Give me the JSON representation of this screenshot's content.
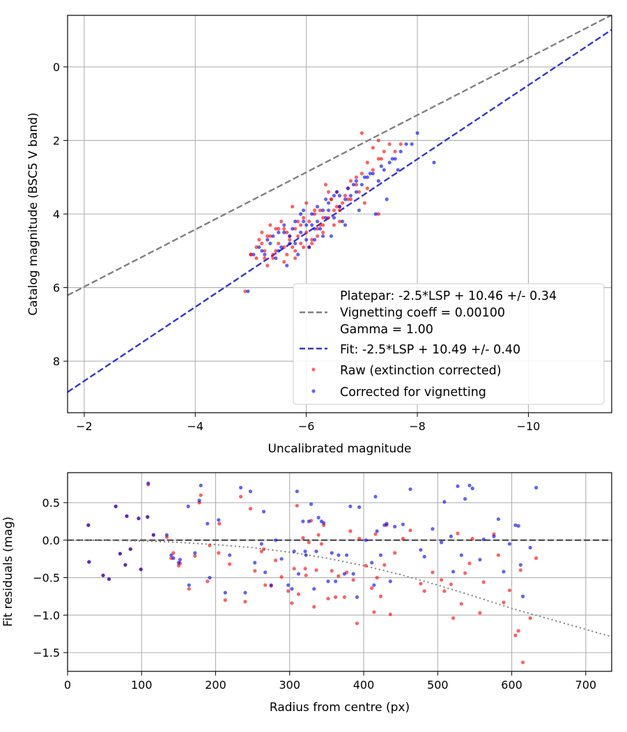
{
  "chart_data": [
    {
      "type": "scatter",
      "xlabel": "Uncalibrated magnitude",
      "ylabel": "Catalog magnitude (BSC5 V band)",
      "xlim": [
        -1.7,
        -11.5
      ],
      "ylim": [
        9.4,
        -1.4
      ],
      "x_inverted": true,
      "y_inverted": true,
      "xticks": [
        -2,
        -4,
        -6,
        -8,
        -10
      ],
      "xtick_labels": [
        "−2",
        "−4",
        "−6",
        "−8",
        "−10"
      ],
      "yticks": [
        0,
        2,
        4,
        6,
        8
      ],
      "ytick_labels": [
        "0",
        "2",
        "4",
        "6",
        "8"
      ],
      "grid": true,
      "legend_position": "lower-right",
      "legend": [
        {
          "label": "Platepar: -2.5*LSP + 10.46 +/- 0.34",
          "style": "none"
        },
        {
          "label": "Vignetting coeff = 0.00100",
          "style": "dashed",
          "color": "#808080"
        },
        {
          "label": "Gamma = 1.00",
          "style": "none"
        },
        {
          "label": "Fit: -2.5*LSP + 10.49 +/- 0.40",
          "style": "dashed",
          "color": "#3333dd"
        },
        {
          "label": "Raw (extinction corrected)",
          "style": "marker",
          "color": "#ff0000"
        },
        {
          "label": "Corrected for vignetting",
          "style": "marker",
          "color": "#0000ff"
        }
      ],
      "lines": [
        {
          "name": "Platepar",
          "x": [
            -1.7,
            -11.5
          ],
          "y": [
            6.21,
            -1.41
          ],
          "style": "dashed",
          "color": "#808080"
        },
        {
          "name": "Fit",
          "x": [
            -1.7,
            -11.5
          ],
          "y": [
            8.84,
            -1.01
          ],
          "style": "dashed",
          "color": "#3333dd"
        }
      ],
      "series": [
        {
          "name": "Raw (extinction corrected)",
          "color": "#ff0000",
          "x": [
            -4.9,
            -5.0,
            -5.1,
            -5.15,
            -5.2,
            -5.25,
            -5.3,
            -5.35,
            -5.4,
            -5.45,
            -5.5,
            -5.55,
            -5.6,
            -5.65,
            -5.7,
            -5.75,
            -5.8,
            -5.85,
            -5.9,
            -5.95,
            -6.0,
            -6.05,
            -6.1,
            -6.15,
            -6.2,
            -6.25,
            -6.3,
            -6.35,
            -6.4,
            -6.45,
            -6.5,
            -6.55,
            -6.6,
            -6.65,
            -6.7,
            -6.75,
            -6.8,
            -6.9,
            -7.0,
            -7.1,
            -7.2,
            -7.3,
            -7.4,
            -7.5,
            -7.6,
            -7.7,
            -7.0,
            -7.2,
            -7.3,
            -6.9,
            -6.6,
            -6.3,
            -6.1,
            -5.8,
            -5.6,
            -5.4,
            -5.2,
            -5.0,
            -5.3,
            -5.7,
            -6.0,
            -6.4,
            -6.8,
            -7.1,
            -7.3,
            -5.5,
            -5.9,
            -6.2,
            -6.5,
            -5.1,
            -5.35,
            -5.6,
            -5.8,
            -6.05,
            -6.3,
            -6.55,
            -6.75,
            -6.95,
            -5.45,
            -5.65,
            -5.85,
            -6.15,
            -6.45,
            -5.25,
            -5.75,
            -6.25,
            -6.6,
            -7.05,
            -7.35,
            -5.95
          ],
          "y": [
            6.1,
            5.1,
            5.2,
            4.7,
            4.5,
            5.0,
            4.6,
            4.3,
            5.1,
            4.4,
            4.8,
            4.2,
            4.9,
            4.5,
            4.7,
            3.8,
            4.4,
            4.6,
            4.3,
            4.9,
            4.5,
            4.2,
            4.7,
            4.0,
            4.4,
            3.9,
            4.3,
            3.2,
            4.1,
            3.6,
            3.9,
            3.4,
            4.2,
            3.7,
            3.5,
            3.3,
            3.1,
            3.2,
            2.9,
            2.6,
            2.8,
            2.5,
            2.3,
            2.1,
            2.3,
            2.1,
            1.8,
            2.2,
            2.0,
            3.0,
            3.8,
            4.5,
            4.8,
            5.0,
            5.3,
            5.2,
            4.8,
            5.1,
            5.4,
            4.6,
            3.7,
            3.4,
            3.6,
            3.3,
            4.0,
            4.4,
            4.8,
            4.6,
            4.3,
            4.9,
            4.6,
            4.4,
            5.2,
            4.9,
            4.1,
            3.8,
            3.6,
            3.4,
            5.0,
            5.1,
            4.2,
            3.9,
            3.6,
            5.2,
            4.9,
            4.3,
            3.9,
            3.7,
            2.5,
            4.1
          ]
        },
        {
          "name": "Corrected for vignetting",
          "color": "#0000ff",
          "x": [
            -4.95,
            -5.05,
            -5.2,
            -5.3,
            -5.4,
            -5.5,
            -5.55,
            -5.6,
            -5.7,
            -5.75,
            -5.8,
            -5.9,
            -5.95,
            -6.0,
            -6.1,
            -6.15,
            -6.2,
            -6.3,
            -6.35,
            -6.4,
            -6.5,
            -6.55,
            -6.6,
            -6.7,
            -6.75,
            -6.8,
            -6.9,
            -7.0,
            -7.1,
            -7.2,
            -7.3,
            -7.4,
            -7.5,
            -7.6,
            -7.7,
            -7.8,
            -7.9,
            -8.0,
            -8.3,
            -7.25,
            -6.95,
            -6.65,
            -6.45,
            -6.25,
            -6.05,
            -5.85,
            -5.65,
            -5.45,
            -5.25,
            -5.35,
            -5.6,
            -5.8,
            -6.0,
            -6.2,
            -6.4,
            -6.6,
            -6.85,
            -7.05,
            -7.15,
            -6.3,
            -6.1,
            -5.9,
            -5.7,
            -5.5,
            -6.5,
            -6.7,
            -7.45,
            -7.65,
            -5.15,
            -5.95,
            -6.35,
            -6.9,
            -7.35,
            -7.55,
            -6.15
          ],
          "y": [
            6.1,
            5.1,
            5.0,
            4.7,
            4.6,
            4.5,
            4.9,
            4.3,
            4.6,
            4.4,
            4.8,
            4.5,
            4.2,
            4.3,
            4.0,
            4.4,
            3.8,
            3.9,
            4.1,
            3.7,
            3.5,
            3.4,
            3.8,
            3.6,
            3.3,
            3.5,
            3.4,
            3.2,
            3.0,
            2.9,
            3.1,
            2.8,
            2.6,
            2.5,
            2.3,
            2.1,
            2.1,
            1.8,
            2.6,
            4.0,
            3.9,
            4.2,
            4.6,
            4.4,
            4.9,
            5.1,
            5.4,
            5.2,
            5.1,
            4.8,
            4.5,
            4.2,
            4.7,
            4.2,
            3.9,
            3.5,
            3.2,
            3.0,
            2.9,
            4.6,
            4.3,
            4.0,
            4.8,
            5.0,
            4.1,
            4.3,
            3.6,
            2.8,
            4.9,
            3.9,
            3.6,
            3.1,
            2.7,
            2.5,
            4.7
          ]
        }
      ]
    },
    {
      "type": "scatter",
      "xlabel": "Radius from centre (px)",
      "ylabel": "Fit residuals (mag)",
      "xlim": [
        0,
        735
      ],
      "ylim": [
        -1.75,
        0.9
      ],
      "xticks": [
        0,
        100,
        200,
        300,
        400,
        500,
        600,
        700
      ],
      "xtick_labels": [
        "0",
        "100",
        "200",
        "300",
        "400",
        "500",
        "600",
        "700"
      ],
      "yticks": [
        0.5,
        0.0,
        -0.5,
        -1.0,
        -1.5
      ],
      "ytick_labels": [
        "0.5",
        "0.0",
        "−0.5",
        "−1.0",
        "−1.5"
      ],
      "grid": true,
      "lines": [
        {
          "name": "zero",
          "x": [
            0,
            735
          ],
          "y": [
            0,
            0
          ],
          "style": "dashed",
          "color": "#555555"
        },
        {
          "name": "vignetting model",
          "x": [
            0,
            50,
            100,
            150,
            200,
            250,
            300,
            350,
            400,
            450,
            500,
            550,
            600,
            650,
            700,
            735
          ],
          "y": [
            0.0,
            -0.002,
            -0.01,
            -0.03,
            -0.06,
            -0.1,
            -0.16,
            -0.24,
            -0.34,
            -0.46,
            -0.6,
            -0.75,
            -0.91,
            -1.05,
            -1.19,
            -1.29
          ],
          "style": "dotted",
          "color": "#808080"
        }
      ],
      "series": [
        {
          "name": "Raw (extinction corrected)",
          "color": "#ff0000",
          "x": [
            28,
            29,
            48,
            56,
            65,
            71,
            78,
            80,
            85,
            96,
            99,
            108,
            109,
            116,
            134,
            140,
            143,
            150,
            152,
            164,
            172,
            178,
            180,
            189,
            192,
            204,
            205,
            213,
            219,
            234,
            240,
            247,
            253,
            262,
            265,
            267,
            275,
            281,
            289,
            298,
            303,
            306,
            310,
            312,
            318,
            321,
            322,
            326,
            329,
            333,
            336,
            339,
            343,
            346,
            352,
            357,
            362,
            366,
            374,
            377,
            382,
            386,
            391,
            394,
            403,
            411,
            414,
            416,
            418,
            423,
            428,
            431,
            436,
            442,
            453,
            463,
            477,
            482,
            493,
            505,
            509,
            518,
            521,
            527,
            532,
            537,
            543,
            547,
            557,
            562,
            576,
            582,
            589,
            597,
            605,
            609,
            612,
            615,
            625,
            633
          ],
          "y": [
            0.2,
            -0.29,
            -0.47,
            -0.52,
            0.45,
            -0.18,
            -0.33,
            0.32,
            -0.12,
            0.29,
            -0.39,
            0.31,
            0.74,
            0.07,
            0.04,
            -0.24,
            -0.17,
            -0.34,
            -0.31,
            -0.65,
            -0.21,
            0.5,
            0.6,
            -0.55,
            -0.07,
            -0.17,
            0.22,
            -0.8,
            -0.32,
            0.58,
            -0.82,
            0.42,
            -0.41,
            -0.15,
            -0.12,
            -0.6,
            -0.61,
            -0.27,
            -0.49,
            -0.68,
            -0.84,
            -0.38,
            0.46,
            -0.72,
            0.03,
            -0.38,
            -0.47,
            -0.03,
            0.26,
            -0.89,
            -0.4,
            0.07,
            -0.05,
            0.2,
            -0.78,
            -0.41,
            -0.76,
            -0.48,
            -0.76,
            -0.43,
            0.12,
            -0.53,
            -1.11,
            0.02,
            -0.34,
            -0.64,
            -0.96,
            0.08,
            -0.5,
            -0.75,
            -0.33,
            0.2,
            -0.99,
            -0.17,
            0.02,
            0.13,
            -0.58,
            -0.68,
            -0.43,
            -0.53,
            -0.68,
            -0.59,
            -1.04,
            0.09,
            -0.85,
            -0.44,
            -0.31,
            0.02,
            -0.97,
            -0.56,
            0.08,
            -0.2,
            -0.83,
            -0.67,
            -1.27,
            -1.21,
            -0.4,
            -1.63,
            -1.04,
            -0.24
          ]
        },
        {
          "name": "Corrected for vignetting",
          "color": "#0000ff",
          "x": [
            28,
            29,
            48,
            56,
            65,
            71,
            78,
            80,
            85,
            96,
            99,
            108,
            109,
            116,
            134,
            140,
            143,
            150,
            152,
            163,
            164,
            172,
            178,
            180,
            189,
            192,
            204,
            213,
            219,
            234,
            240,
            247,
            253,
            262,
            265,
            267,
            275,
            281,
            289,
            298,
            303,
            306,
            310,
            312,
            318,
            321,
            322,
            326,
            329,
            333,
            336,
            339,
            343,
            346,
            352,
            357,
            362,
            366,
            374,
            377,
            382,
            386,
            391,
            394,
            403,
            411,
            414,
            416,
            418,
            423,
            428,
            431,
            436,
            442,
            453,
            463,
            477,
            482,
            493,
            505,
            509,
            518,
            521,
            527,
            532,
            537,
            543,
            547,
            557,
            562,
            576,
            582,
            589,
            597,
            605,
            609,
            612,
            615,
            625,
            633
          ],
          "y": [
            0.2,
            -0.29,
            -0.47,
            -0.52,
            0.45,
            -0.18,
            -0.33,
            0.32,
            -0.12,
            0.29,
            -0.39,
            0.31,
            0.76,
            0.07,
            0.07,
            -0.2,
            -0.24,
            -0.3,
            -0.26,
            0.45,
            -0.6,
            -0.17,
            0.53,
            0.73,
            0.22,
            -0.5,
            0.27,
            -0.7,
            -0.2,
            0.7,
            -0.7,
            0.65,
            -0.3,
            -0.05,
            0.38,
            -0.43,
            -0.6,
            0.0,
            -0.25,
            -0.6,
            -0.65,
            -0.15,
            0.65,
            -0.45,
            0.25,
            -0.15,
            -0.2,
            0.25,
            0.48,
            -0.65,
            -0.15,
            0.3,
            0.25,
            0.23,
            -0.55,
            -0.17,
            -0.55,
            -0.2,
            -0.45,
            -0.2,
            0.45,
            -0.45,
            -0.76,
            0.44,
            0.0,
            -0.3,
            -0.6,
            0.58,
            0.12,
            -0.2,
            0.2,
            0.22,
            -0.55,
            0.18,
            0.21,
            0.68,
            -0.13,
            -0.22,
            0.15,
            -0.03,
            0.51,
            0.05,
            -0.42,
            0.72,
            -0.2,
            0.55,
            0.73,
            0.69,
            -0.26,
            0.01,
            0.05,
            0.28,
            -0.42,
            -0.05,
            0.2,
            0.19,
            -0.33,
            -0.75,
            -0.1,
            0.7
          ]
        }
      ]
    }
  ]
}
